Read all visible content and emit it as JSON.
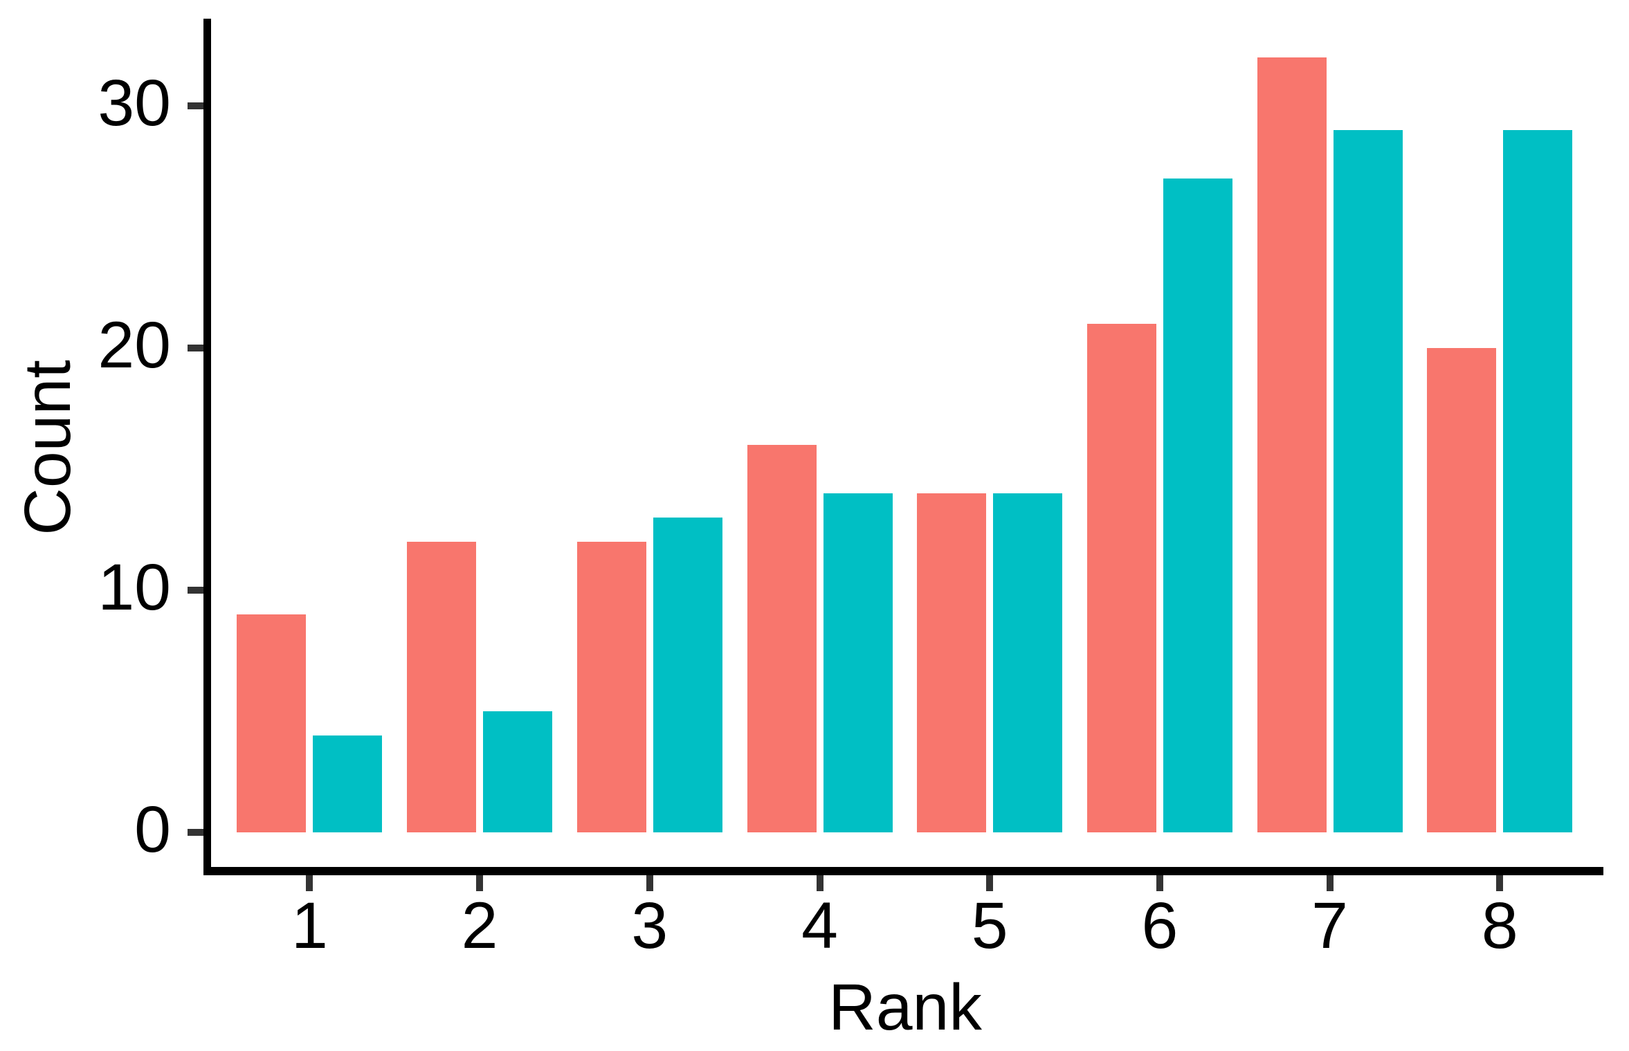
{
  "chart_data": {
    "type": "bar",
    "title": "",
    "xlabel": "Rank",
    "ylabel": "Count",
    "categories": [
      "1",
      "2",
      "3",
      "4",
      "5",
      "6",
      "7",
      "8"
    ],
    "series": [
      {
        "name": "red",
        "color": "#F8766D",
        "values": [
          9,
          12,
          12,
          16,
          14,
          21,
          32,
          20
        ]
      },
      {
        "name": "teal",
        "color": "#00BFC4",
        "values": [
          4,
          5,
          13,
          14,
          14,
          27,
          29,
          29
        ]
      }
    ],
    "yticks": [
      0,
      10,
      20,
      30
    ],
    "ytick_labels": [
      "0",
      "10",
      "20",
      "30"
    ],
    "ylim": [
      0,
      33.6
    ],
    "grid": false,
    "legend_position": "none",
    "colors": {
      "axis_line": "#000000",
      "tick_mark": "#333333",
      "text": "#000000",
      "background": "#ffffff"
    }
  }
}
